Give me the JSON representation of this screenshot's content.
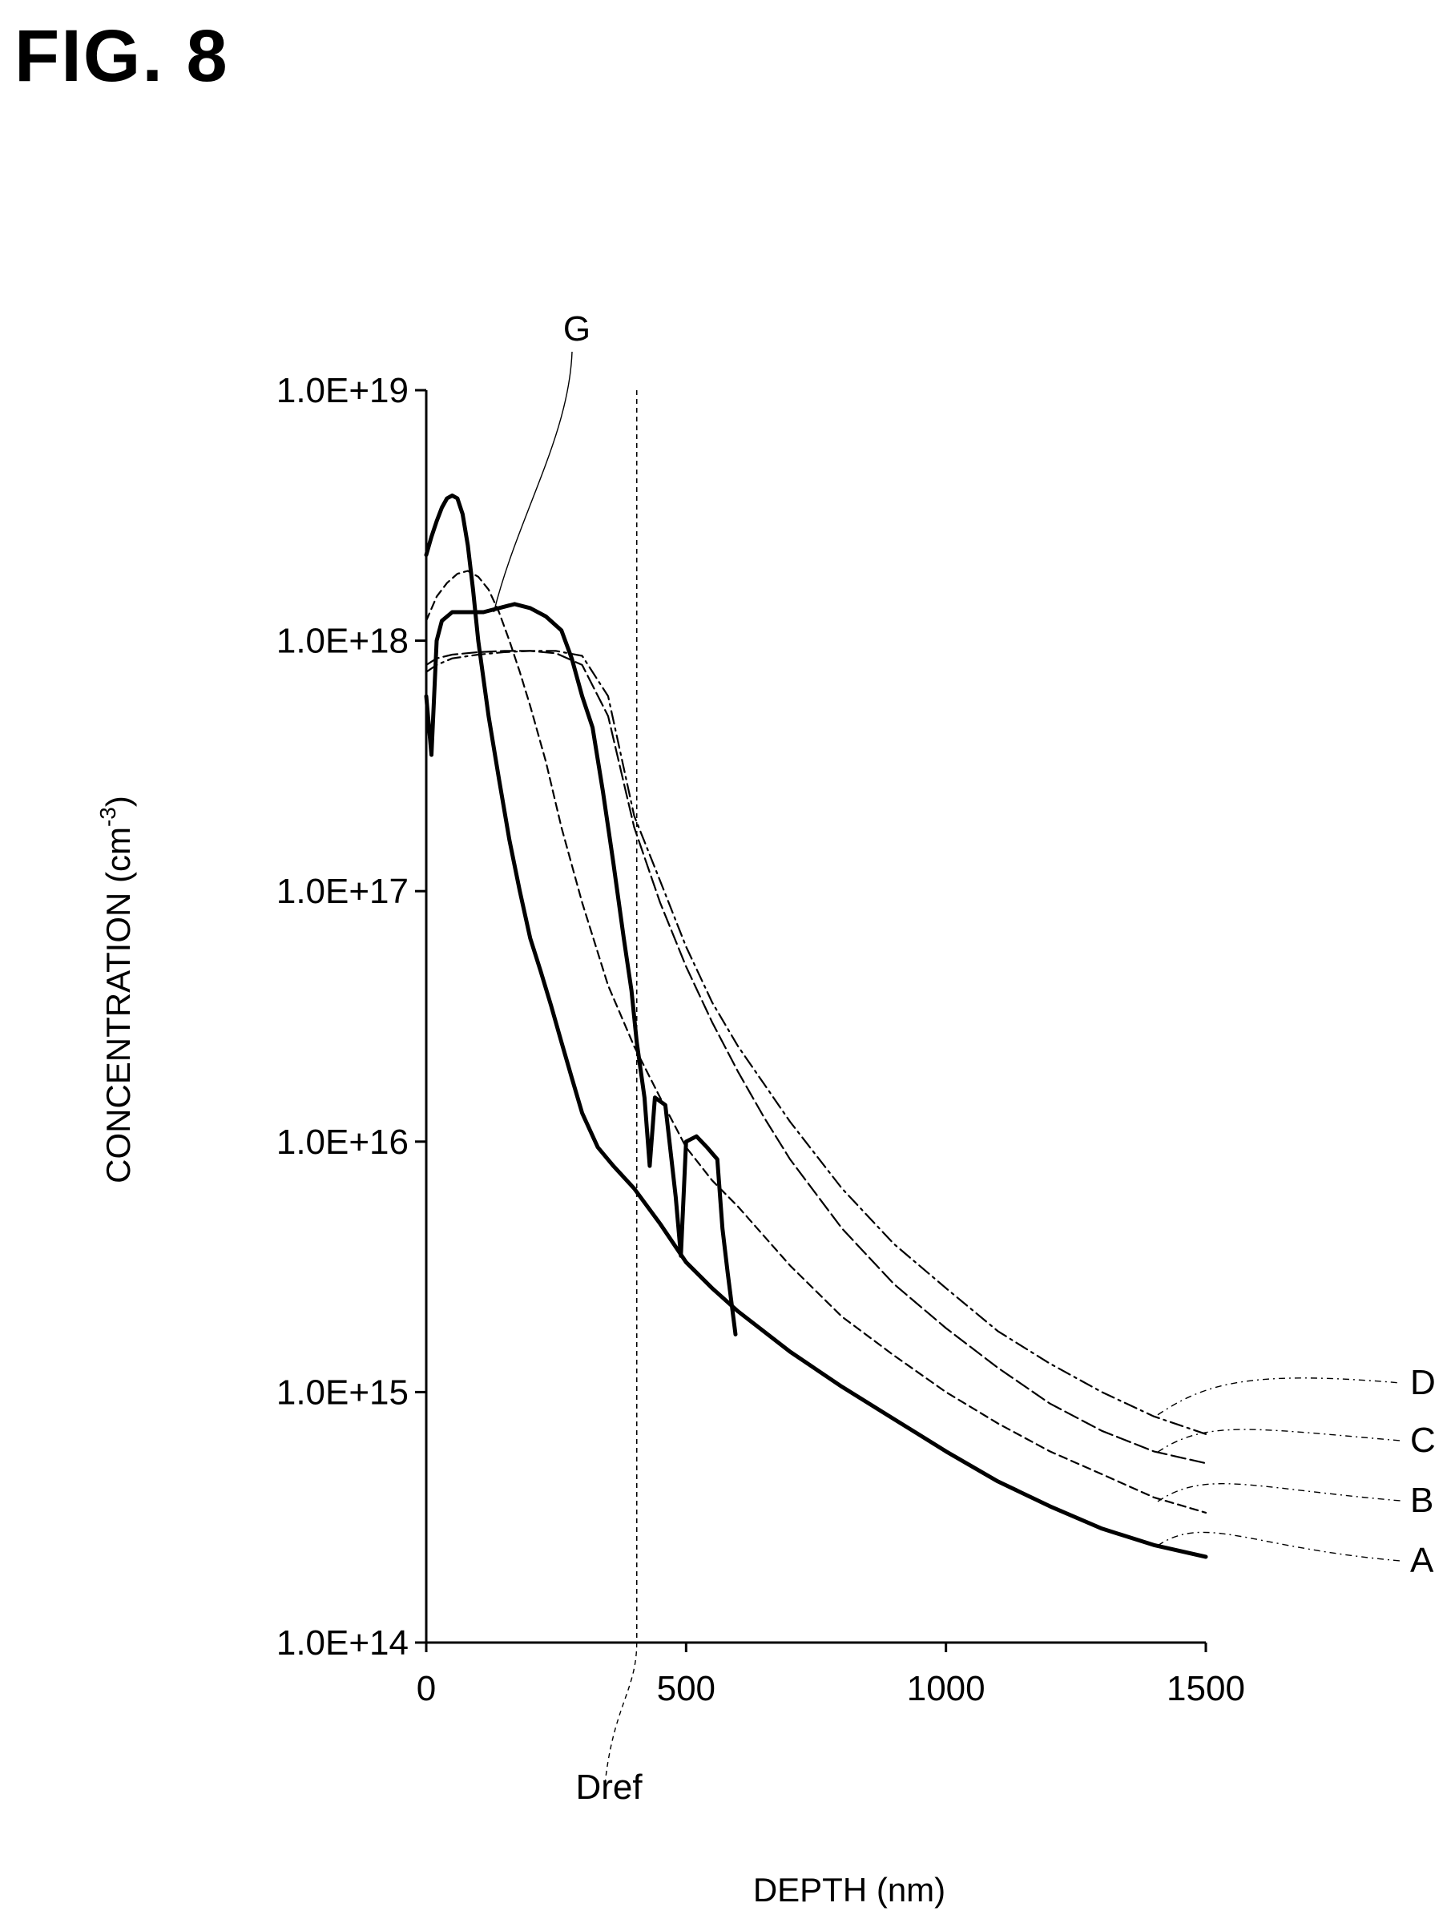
{
  "figure": {
    "title": "FIG. 8"
  },
  "chart_data": {
    "type": "line",
    "title": "",
    "xlabel": "DEPTH (nm)",
    "ylabel": "CONCENTRATION (cm",
    "ylabel_unit_exponent": "-3",
    "ylabel_close": ")",
    "y_scale": "log",
    "xlim": [
      0,
      1500
    ],
    "ylim": [
      100000000000000.0,
      1e+19
    ],
    "x_ticks": [
      0,
      500,
      1000,
      1500
    ],
    "x_tick_labels": [
      "0",
      "500",
      "1000",
      "1500"
    ],
    "y_ticks": [
      100000000000000.0,
      1000000000000000.0,
      1e+16,
      1e+17,
      1e+18,
      1e+19
    ],
    "y_tick_labels": [
      "1.0E+14",
      "1.0E+15",
      "1.0E+16",
      "1.0E+17",
      "1.0E+18",
      "1.0E+19"
    ],
    "grid": false,
    "reference_line": {
      "label": "Dref",
      "x": 405
    },
    "series": [
      {
        "name": "A",
        "style": "solid-bold",
        "x": [
          0,
          10,
          20,
          30,
          40,
          50,
          60,
          70,
          80,
          90,
          100,
          120,
          140,
          160,
          180,
          200,
          220,
          240,
          260,
          280,
          300,
          330,
          360,
          400,
          450,
          500,
          550,
          600,
          700,
          800,
          900,
          1000,
          1100,
          1200,
          1300,
          1400,
          1500
        ],
        "y": [
          2.2e+18,
          2.6e+18,
          3e+18,
          3.4e+18,
          3.7e+18,
          3.8e+18,
          3.7e+18,
          3.2e+18,
          2.4e+18,
          1.6e+18,
          1e+18,
          5e+17,
          2.8e+17,
          1.6e+17,
          1e+17,
          6.5e+16,
          4.8e+16,
          3.5e+16,
          2.5e+16,
          1.8e+16,
          1.3e+16,
          9500000000000000.0,
          8000000000000000.0,
          6500000000000000.0,
          4700000000000000.0,
          3300000000000000.0,
          2600000000000000.0,
          2100000000000000.0,
          1450000000000000.0,
          1050000000000000.0,
          780000000000000.0,
          580000000000000.0,
          440000000000000.0,
          350000000000000.0,
          285000000000000.0,
          245000000000000.0,
          220000000000000.0
        ]
      },
      {
        "name": "B",
        "style": "dashed",
        "x": [
          0,
          20,
          40,
          60,
          80,
          100,
          120,
          140,
          160,
          180,
          200,
          230,
          260,
          300,
          350,
          400,
          450,
          500,
          550,
          600,
          700,
          800,
          900,
          1000,
          1100,
          1200,
          1300,
          1400,
          1500
        ],
        "y": [
          1.2e+18,
          1.5e+18,
          1.7e+18,
          1.85e+18,
          1.9e+18,
          1.8e+18,
          1.6e+18,
          1.3e+18,
          1e+18,
          7.5e+17,
          5.5e+17,
          3.3e+17,
          1.8e+17,
          9e+16,
          4.2e+16,
          2.4e+16,
          1.5e+16,
          9500000000000000.0,
          7000000000000000.0,
          5500000000000000.0,
          3200000000000000.0,
          2000000000000000.0,
          1400000000000000.0,
          1000000000000000.0,
          750000000000000.0,
          580000000000000.0,
          470000000000000.0,
          380000000000000.0,
          330000000000000.0
        ]
      },
      {
        "name": "C",
        "style": "dashed-long",
        "x": [
          0,
          20,
          50,
          100,
          150,
          200,
          250,
          300,
          350,
          400,
          450,
          500,
          550,
          600,
          650,
          700,
          800,
          900,
          1000,
          1100,
          1200,
          1300,
          1400,
          1500
        ],
        "y": [
          8e+17,
          8.5e+17,
          8.8e+17,
          9e+17,
          9.1e+17,
          9.1e+17,
          8.9e+17,
          8e+17,
          5e+17,
          1.8e+17,
          9e+16,
          5e+16,
          3e+16,
          1.9e+16,
          1.25e+16,
          8500000000000000.0,
          4500000000000000.0,
          2700000000000000.0,
          1800000000000000.0,
          1250000000000000.0,
          900000000000000.0,
          700000000000000.0,
          580000000000000.0,
          520000000000000.0
        ]
      },
      {
        "name": "D",
        "style": "dash-dot",
        "x": [
          0,
          20,
          50,
          100,
          150,
          200,
          250,
          300,
          350,
          400,
          450,
          500,
          550,
          600,
          650,
          700,
          800,
          900,
          1000,
          1100,
          1200,
          1300,
          1400,
          1500
        ],
        "y": [
          7.5e+17,
          8e+17,
          8.5e+17,
          8.8e+17,
          9e+17,
          9.1e+17,
          9.1e+17,
          8.7e+17,
          6e+17,
          2e+17,
          1.1e+17,
          6e+16,
          3.6e+16,
          2.4e+16,
          1.7e+16,
          1.2e+16,
          6500000000000000.0,
          3900000000000000.0,
          2600000000000000.0,
          1750000000000000.0,
          1300000000000000.0,
          1000000000000000.0,
          800000000000000.0,
          680000000000000.0
        ]
      },
      {
        "name": "G",
        "style": "solid-bold-jagged",
        "x": [
          0,
          10,
          20,
          30,
          50,
          80,
          110,
          140,
          170,
          200,
          230,
          260,
          280,
          300,
          320,
          340,
          360,
          380,
          395,
          405,
          420,
          430,
          440,
          460,
          480,
          490,
          500,
          520,
          540,
          560,
          570,
          580,
          595
        ],
        "y": [
          6e+17,
          3.5e+17,
          1e+18,
          1.2e+18,
          1.3e+18,
          1.3e+18,
          1.3e+18,
          1.35e+18,
          1.4e+18,
          1.35e+18,
          1.25e+18,
          1.1e+18,
          8.5e+17,
          6e+17,
          4.5e+17,
          2.5e+17,
          1.3e+17,
          6.5e+16,
          4e+16,
          2.5e+16,
          1.5e+16,
          8000000000000000.0,
          1.5e+16,
          1.4e+16,
          6000000000000000.0,
          3500000000000000.0,
          1e+16,
          1.05e+16,
          9500000000000000.0,
          8500000000000000.0,
          4500000000000000.0,
          3000000000000000.0,
          1700000000000000.0
        ]
      }
    ]
  }
}
